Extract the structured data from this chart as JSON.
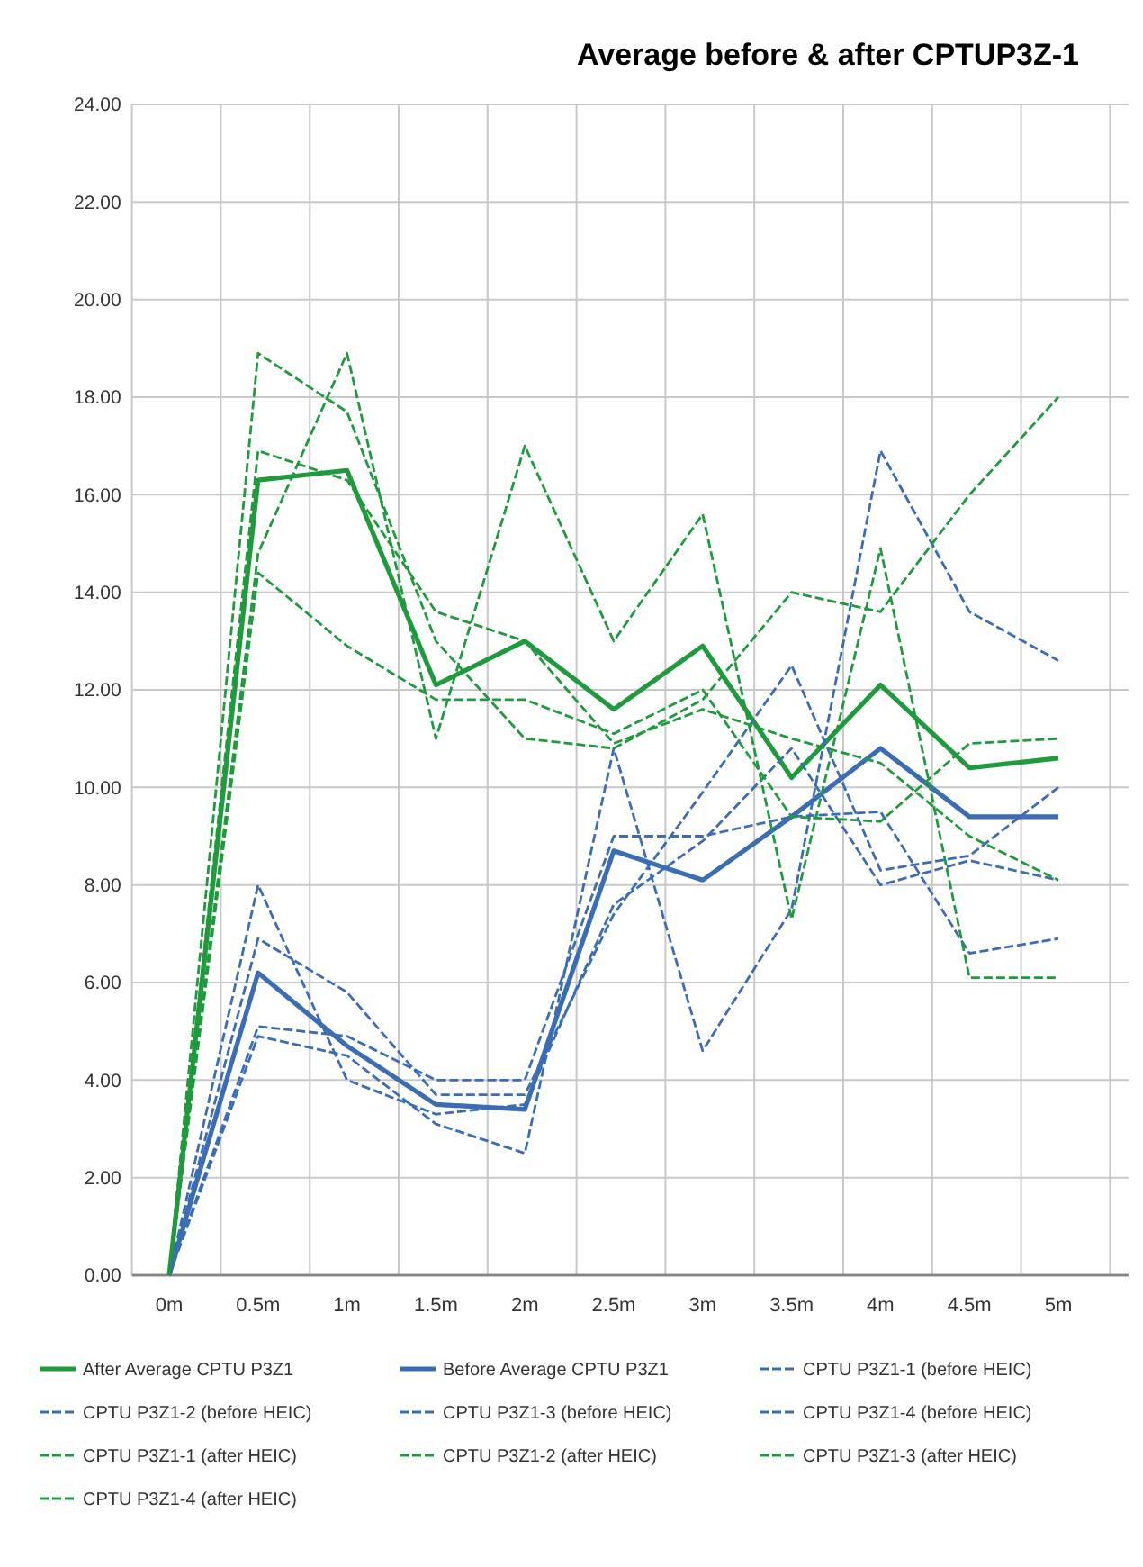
{
  "chart_data": {
    "type": "line",
    "title": "Average before & after CPTUP3Z-1",
    "categories": [
      "0m",
      "0.5m",
      "1m",
      "1.5m",
      "2m",
      "2.5m",
      "3m",
      "3.5m",
      "4m",
      "4.5m",
      "5m"
    ],
    "ylim": [
      0,
      24
    ],
    "yticks": [
      {
        "value": 0,
        "label": "0.00"
      },
      {
        "value": 2,
        "label": "2.00"
      },
      {
        "value": 4,
        "label": "4.00"
      },
      {
        "value": 6,
        "label": "6.00"
      },
      {
        "value": 8,
        "label": "8.00"
      },
      {
        "value": 10,
        "label": "10.00"
      },
      {
        "value": 12,
        "label": "12.00"
      },
      {
        "value": 14,
        "label": "14.00"
      },
      {
        "value": 16,
        "label": "16.00"
      },
      {
        "value": 18,
        "label": "18.00"
      },
      {
        "value": 20,
        "label": "20.00"
      },
      {
        "value": 22,
        "label": "22.00"
      },
      {
        "value": 24,
        "label": "24.00"
      }
    ],
    "grid": true,
    "legend": "bottom",
    "series": [
      {
        "name": "After Average CPTU P3Z1",
        "color": "#1f9a3c",
        "line_style": "solid",
        "values": [
          0,
          16.3,
          16.5,
          12.1,
          13.0,
          11.6,
          12.9,
          10.2,
          12.1,
          10.4,
          10.6
        ]
      },
      {
        "name": "Before Average CPTU P3Z1",
        "color": "#3b6db4",
        "line_style": "solid",
        "values": [
          0,
          6.2,
          4.7,
          3.5,
          3.4,
          8.7,
          8.1,
          9.4,
          10.8,
          9.4,
          9.4
        ]
      },
      {
        "name": "CPTU P3Z1-1 (before HEIC)",
        "color": "#3b6db4",
        "line_style": "dashed",
        "values": [
          0,
          4.9,
          4.5,
          3.1,
          2.5,
          10.8,
          4.6,
          7.5,
          16.9,
          13.6,
          12.6
        ]
      },
      {
        "name": "CPTU P3Z1-2 (before HEIC)",
        "color": "#3b6db4",
        "line_style": "dashed",
        "values": [
          0,
          5.1,
          4.9,
          4.0,
          4.0,
          9.0,
          9.0,
          9.4,
          9.5,
          6.6,
          6.9
        ]
      },
      {
        "name": "CPTU P3Z1-3 (before HEIC)",
        "color": "#3b6db4",
        "line_style": "dashed",
        "values": [
          0,
          6.9,
          5.8,
          3.7,
          3.7,
          7.4,
          9.9,
          12.5,
          8.3,
          8.6,
          10.0
        ]
      },
      {
        "name": "CPTU P3Z1-4 (before HEIC)",
        "color": "#3b6db4",
        "line_style": "dashed",
        "values": [
          0,
          8.0,
          4.0,
          3.3,
          3.5,
          7.6,
          8.9,
          10.8,
          8.0,
          8.5,
          8.1
        ]
      },
      {
        "name": "CPTU P3Z1-1 (after HEIC)",
        "color": "#1f9a3c",
        "line_style": "dashed",
        "values": [
          0,
          14.8,
          18.9,
          11.0,
          17.0,
          13.0,
          15.6,
          7.3,
          14.9,
          6.1,
          6.1
        ]
      },
      {
        "name": "CPTU P3Z1-2 (after HEIC)",
        "color": "#1f9a3c",
        "line_style": "dashed",
        "values": [
          0,
          18.9,
          17.7,
          13.0,
          11.0,
          10.8,
          11.8,
          14.0,
          13.6,
          16.0,
          18.0
        ]
      },
      {
        "name": "CPTU P3Z1-3 (after HEIC)",
        "color": "#1f9a3c",
        "line_style": "dashed",
        "values": [
          0,
          16.9,
          16.3,
          13.6,
          13.0,
          10.9,
          11.6,
          11.0,
          10.5,
          9.0,
          8.1
        ]
      },
      {
        "name": "CPTU P3Z1-4 (after HEIC)",
        "color": "#1f9a3c",
        "line_style": "dashed",
        "values": [
          0,
          14.4,
          12.9,
          11.8,
          11.8,
          11.1,
          12.0,
          9.4,
          9.3,
          10.9,
          11.0
        ]
      }
    ]
  }
}
